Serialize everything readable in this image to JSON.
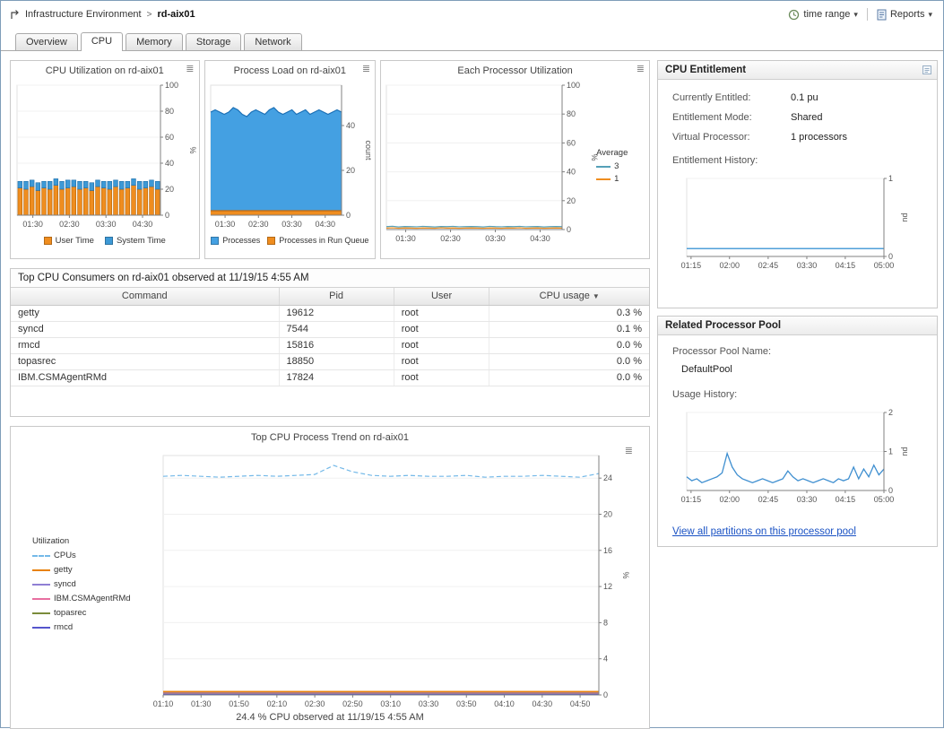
{
  "icons": {
    "chevron_down": "▾",
    "sort_desc": "▼",
    "chart_menu": "≣",
    "crumb_sep": ">"
  },
  "header": {
    "breadcrumb_root": "Infrastructure Environment",
    "breadcrumb_current": "rd-aix01",
    "time_range": "time range",
    "reports": "Reports"
  },
  "tabs": [
    {
      "label": "Overview",
      "active": false
    },
    {
      "label": "CPU",
      "active": true
    },
    {
      "label": "Memory",
      "active": false
    },
    {
      "label": "Storage",
      "active": false
    },
    {
      "label": "Network",
      "active": false
    }
  ],
  "consumers": {
    "title": "Top CPU Consumers on rd-aix01 observed at 11/19/15 4:55 AM",
    "columns": [
      "Command",
      "Pid",
      "User",
      "CPU usage"
    ],
    "rows": [
      [
        "getty",
        "19612",
        "root",
        "0.3 %"
      ],
      [
        "syncd",
        "7544",
        "root",
        "0.1 %"
      ],
      [
        "rmcd",
        "15816",
        "root",
        "0.0 %"
      ],
      [
        "topasrec",
        "18850",
        "root",
        "0.0 %"
      ],
      [
        "IBM.CSMAgentRMd",
        "17824",
        "root",
        "0.0 %"
      ]
    ]
  },
  "entitlement": {
    "title": "CPU Entitlement",
    "fields": [
      {
        "label": "Currently Entitled:",
        "value": "0.1 pu"
      },
      {
        "label": "Entitlement Mode:",
        "value": "Shared"
      },
      {
        "label": "Virtual Processor:",
        "value": "1 processors"
      }
    ],
    "history_label": "Entitlement History:"
  },
  "pool": {
    "title": "Related Processor Pool",
    "name_label": "Processor Pool Name:",
    "name_value": "DefaultPool",
    "usage_label": "Usage History:",
    "link": "View all partitions on this processor pool"
  },
  "chart_data": {
    "cpu_utilization": {
      "type": "bar",
      "title": "CPU Utilization on rd-aix01",
      "ylabel": "%",
      "ylim": [
        0,
        100
      ],
      "yticks": [
        0,
        20,
        40,
        60,
        80,
        100
      ],
      "xlabels": [
        "01:30",
        "02:30",
        "03:30",
        "04:30"
      ],
      "xpos": [
        0.11,
        0.365,
        0.62,
        0.875
      ],
      "series": [
        {
          "name": "User Time",
          "color": "#ef8d1f",
          "stroke": "#b2630a",
          "values": [
            21,
            20,
            22,
            19,
            21,
            20,
            23,
            20,
            21,
            22,
            20,
            21,
            19,
            22,
            21,
            20,
            22,
            20,
            21,
            23,
            20,
            21,
            22,
            20
          ]
        },
        {
          "name": "System Time",
          "color": "#3d99d6",
          "stroke": "#1f6faa",
          "values": [
            5,
            6,
            5,
            6,
            5,
            6,
            5,
            6,
            6,
            5,
            6,
            5,
            6,
            5,
            5,
            6,
            5,
            6,
            5,
            5,
            6,
            5,
            5,
            6
          ]
        }
      ]
    },
    "process_load": {
      "type": "area",
      "title": "Process Load on rd-aix01",
      "ylabel": "count",
      "ylim": [
        0,
        58
      ],
      "yticks": [
        0,
        20,
        40
      ],
      "xlabels": [
        "01:30",
        "02:30",
        "03:30",
        "04:30"
      ],
      "xpos": [
        0.11,
        0.365,
        0.62,
        0.875
      ],
      "series": [
        {
          "name": "Processes",
          "color": "#44a0e2",
          "stroke": "#1a6fb5",
          "values": [
            46,
            47,
            46,
            45,
            46,
            48,
            47,
            45,
            44,
            46,
            47,
            46,
            45,
            47,
            48,
            46,
            45,
            46,
            47,
            45,
            46,
            47,
            45,
            46,
            47,
            46,
            45,
            46,
            47,
            46
          ]
        },
        {
          "name": "Processes in Run Queue",
          "color": "#ef8d1f",
          "stroke": "#c06a10",
          "values": [
            2,
            2,
            2,
            2,
            2,
            2,
            2,
            2,
            2,
            2,
            2,
            2,
            2,
            2,
            2,
            2,
            2,
            2,
            2,
            2,
            2,
            2,
            2,
            2,
            2,
            2,
            2,
            2,
            2,
            2
          ]
        }
      ]
    },
    "each_processor": {
      "type": "line",
      "title": "Each Processor Utilization",
      "legend_title": "Average",
      "ylabel": "%",
      "ylim": [
        0,
        100
      ],
      "yticks": [
        0,
        20,
        40,
        60,
        80,
        100
      ],
      "xlabels": [
        "01:30",
        "02:30",
        "03:30",
        "04:30"
      ],
      "xpos": [
        0.11,
        0.365,
        0.62,
        0.875
      ],
      "series": [
        {
          "name": "3",
          "color": "#55a0b8",
          "width": 1.2,
          "values": [
            2,
            2.3,
            1.8,
            2.1,
            2,
            1.9,
            2.2,
            2,
            1.8,
            2.1,
            2,
            2.2,
            1.9,
            2,
            2.1,
            2,
            1.8,
            2.2,
            2,
            1.9,
            2.1,
            2,
            2.2,
            1.9,
            2,
            2.1,
            1.8,
            2,
            2.1,
            2
          ]
        },
        {
          "name": "1",
          "color": "#ef8d1f",
          "width": 1.2,
          "values": [
            1,
            1.2,
            0.9,
            1.1,
            1,
            0.9,
            1.1,
            1,
            0.9,
            1.2,
            1,
            1.1,
            0.9,
            1,
            1.1,
            1,
            0.9,
            1.1,
            1,
            0.9,
            1.1,
            1,
            1.2,
            0.9,
            1,
            1.1,
            0.9,
            1,
            1.1,
            1
          ]
        }
      ]
    },
    "process_trend": {
      "type": "line",
      "title": "Top CPU Process Trend on rd-aix01",
      "legend_title": "Utilization",
      "caption": "24.4 % CPU observed at 11/19/15 4:55 AM",
      "ylabel": "%",
      "ylim": [
        0,
        26.5
      ],
      "yticks": [
        0,
        4,
        8,
        12,
        16,
        20,
        24
      ],
      "xlabels": [
        "01:10",
        "01:30",
        "01:50",
        "02:10",
        "02:30",
        "02:50",
        "03:10",
        "03:30",
        "03:50",
        "04:10",
        "04:30",
        "04:50"
      ],
      "xpos": [
        0,
        0.087,
        0.174,
        0.261,
        0.348,
        0.435,
        0.522,
        0.609,
        0.696,
        0.783,
        0.87,
        0.957
      ],
      "series": [
        {
          "name": "CPUs",
          "color": "#74b9e8",
          "dash": "5,3",
          "width": 1.2,
          "values": [
            24.2,
            24.3,
            24.2,
            24.1,
            24.2,
            24.3,
            24.2,
            24.3,
            24.4,
            25.4,
            24.7,
            24.3,
            24.2,
            24.3,
            24.2,
            24.2,
            24.3,
            24.1,
            24.2,
            24.2,
            24.3,
            24.2,
            24.1,
            24.5
          ]
        },
        {
          "name": "getty",
          "color": "#e8820d",
          "width": 2,
          "values": [
            0.35,
            0.35
          ]
        },
        {
          "name": "syncd",
          "color": "#8f7fd4",
          "width": 1.2,
          "values": [
            0.2,
            0.2
          ]
        },
        {
          "name": "IBM.CSMAgentRMd",
          "color": "#e86fa0",
          "width": 1.2,
          "values": [
            0.12,
            0.12
          ]
        },
        {
          "name": "topasrec",
          "color": "#7a8b3a",
          "width": 1.2,
          "values": [
            0.08,
            0.08
          ]
        },
        {
          "name": "rmcd",
          "color": "#5555cc",
          "width": 1.2,
          "values": [
            0.05,
            0.05
          ]
        }
      ]
    },
    "entitlement_history": {
      "type": "line",
      "ylabel": "pu",
      "ylim": [
        0,
        1
      ],
      "yticks": [
        0,
        1
      ],
      "xlabels": [
        "01:15",
        "02:00",
        "02:45",
        "03:30",
        "04:15",
        "05:00"
      ],
      "xpos": [
        0.022,
        0.217,
        0.413,
        0.609,
        0.804,
        1
      ],
      "series": [
        {
          "name": "Entitlement",
          "color": "#4f9fd9",
          "width": 1.5,
          "values": [
            0.1,
            0.1
          ]
        }
      ]
    },
    "usage_history": {
      "type": "line",
      "ylabel": "pu",
      "ylim": [
        0,
        2
      ],
      "yticks": [
        0,
        1,
        2
      ],
      "xlabels": [
        "01:15",
        "02:00",
        "02:45",
        "03:30",
        "04:15",
        "05:00"
      ],
      "xpos": [
        0.022,
        0.217,
        0.413,
        0.609,
        0.804,
        1
      ],
      "series": [
        {
          "name": "Pool Usage",
          "color": "#3f8fd0",
          "width": 1.3,
          "values": [
            0.35,
            0.25,
            0.3,
            0.2,
            0.25,
            0.3,
            0.35,
            0.45,
            0.95,
            0.6,
            0.4,
            0.3,
            0.25,
            0.2,
            0.25,
            0.3,
            0.25,
            0.2,
            0.25,
            0.3,
            0.5,
            0.35,
            0.25,
            0.3,
            0.25,
            0.2,
            0.25,
            0.3,
            0.25,
            0.2,
            0.3,
            0.25,
            0.3,
            0.6,
            0.3,
            0.55,
            0.35,
            0.65,
            0.4,
            0.55
          ]
        }
      ]
    }
  }
}
